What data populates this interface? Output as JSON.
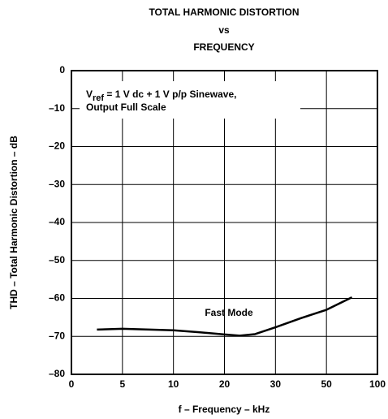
{
  "chart_data": {
    "type": "line",
    "title": [
      "TOTAL HARMONIC DISTORTION",
      "vs",
      "FREQUENCY"
    ],
    "xlabel": "f – Frequency – kHz",
    "ylabel": "THD – Total Harmonic Distortion – dB",
    "annotation": {
      "symbol": "V",
      "subscript": "ref",
      "rest": " = 1 V dc + 1 V p/p Sinewave,",
      "line2": "Output Full Scale"
    },
    "series": [
      {
        "name": "Fast Mode",
        "color": "#000000",
        "x": [
          2.5,
          5,
          10,
          15,
          20,
          23,
          26,
          30,
          40,
          50,
          75
        ],
        "values": [
          -68.2,
          -68,
          -68.4,
          -68.9,
          -69.5,
          -69.8,
          -69.4,
          -67.6,
          -65.2,
          -63,
          -59.7
        ]
      }
    ],
    "xlim": [
      0,
      100
    ],
    "xticks": [
      0,
      5,
      10,
      20,
      30,
      50,
      100
    ],
    "ylim": [
      -80,
      0
    ],
    "yticks": [
      0,
      {
        "value": -10,
        "label": "–10"
      },
      {
        "value": -20,
        "label": "–20"
      },
      {
        "value": -30,
        "label": "–30"
      },
      {
        "value": -40,
        "label": "–40"
      },
      {
        "value": -50,
        "label": "–50"
      },
      {
        "value": -60,
        "label": "–60"
      },
      {
        "value": -70,
        "label": "–70"
      },
      {
        "value": -80,
        "label": "–80"
      }
    ],
    "grid": true
  }
}
